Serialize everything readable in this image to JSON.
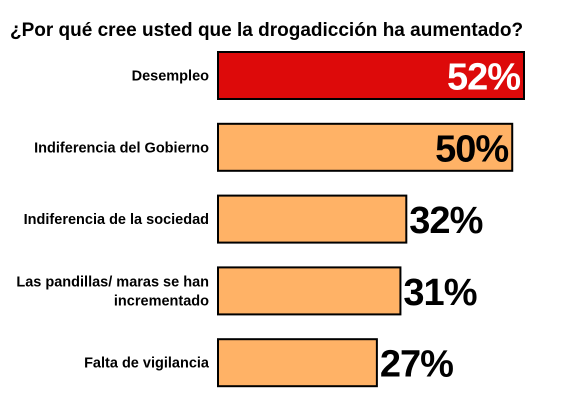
{
  "chart_data": {
    "type": "bar",
    "orientation": "horizontal",
    "title": "¿Por qué cree usted que la drogadicción ha aumentado?",
    "categories": [
      "Desempleo",
      "Indiferencia del Gobierno",
      "Indiferencia de la sociedad",
      "Las pandillas/ maras se han incrementado",
      "Falta de vigilancia"
    ],
    "category_lines": [
      [
        "Desempleo"
      ],
      [
        "Indiferencia del Gobierno"
      ],
      [
        "Indiferencia de la sociedad"
      ],
      [
        "Las pandillas/ maras se han",
        "incrementado"
      ],
      [
        "Falta de vigilancia"
      ]
    ],
    "values": [
      52,
      50,
      32,
      31,
      27
    ],
    "value_labels": [
      "52%",
      "50%",
      "32%",
      "31%",
      "27%"
    ],
    "xlim": [
      0,
      52
    ],
    "grid": false,
    "legend": "none",
    "colors": {
      "highlight_bar": "#dd0a0a",
      "bar": "#ffb266",
      "bar_outline": "#000000",
      "label_on_highlight": "#ffffff",
      "label": "#000000"
    }
  }
}
